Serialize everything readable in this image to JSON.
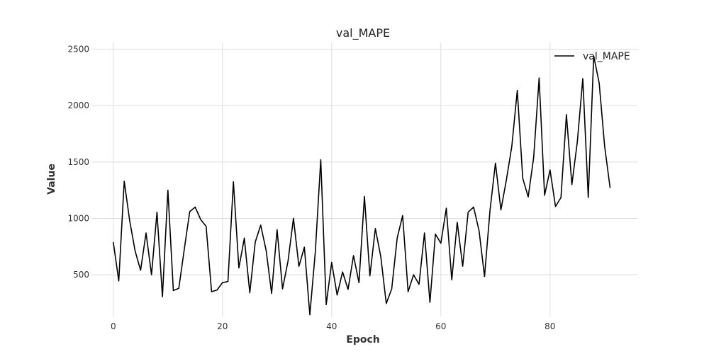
{
  "chart_data": {
    "type": "line",
    "title": "val_MAPE",
    "xlabel": "Epoch",
    "ylabel": "Value",
    "xlim": [
      -4,
      96
    ],
    "ylim": [
      130,
      2560
    ],
    "xticks": [
      0,
      20,
      40,
      60,
      80
    ],
    "yticks": [
      500,
      1000,
      1500,
      2000,
      2500
    ],
    "grid": true,
    "legend_position": "top-right",
    "series": [
      {
        "name": "val_MAPE",
        "color": "#000000",
        "x": [
          0,
          1,
          2,
          3,
          4,
          5,
          6,
          7,
          8,
          9,
          10,
          11,
          12,
          13,
          14,
          15,
          16,
          17,
          18,
          19,
          20,
          21,
          22,
          23,
          24,
          25,
          26,
          27,
          28,
          29,
          30,
          31,
          32,
          33,
          34,
          35,
          36,
          37,
          38,
          39,
          40,
          41,
          42,
          43,
          44,
          45,
          46,
          47,
          48,
          49,
          50,
          51,
          52,
          53,
          54,
          55,
          56,
          57,
          58,
          59,
          60,
          61,
          62,
          63,
          64,
          65,
          66,
          67,
          68,
          69,
          70,
          71,
          72,
          73,
          74,
          75,
          76,
          77,
          78,
          79,
          80,
          81,
          82,
          83,
          84,
          85,
          86,
          87,
          88,
          89,
          90,
          91
        ],
        "values": [
          790,
          445,
          1330,
          980,
          710,
          540,
          870,
          500,
          1055,
          305,
          1250,
          360,
          380,
          725,
          1060,
          1100,
          990,
          930,
          350,
          365,
          430,
          440,
          1325,
          560,
          825,
          340,
          790,
          940,
          715,
          335,
          900,
          375,
          620,
          1000,
          575,
          745,
          145,
          700,
          1520,
          235,
          610,
          320,
          525,
          370,
          670,
          430,
          1195,
          490,
          910,
          660,
          245,
          375,
          825,
          1025,
          350,
          500,
          415,
          870,
          255,
          860,
          780,
          1090,
          455,
          965,
          575,
          1055,
          1100,
          890,
          485,
          1070,
          1490,
          1075,
          1340,
          1640,
          2135,
          1355,
          1190,
          1540,
          2245,
          1205,
          1430,
          1105,
          1185,
          1920,
          1300,
          1680,
          2240,
          1185,
          2440,
          2200,
          1640,
          1270
        ]
      }
    ]
  }
}
